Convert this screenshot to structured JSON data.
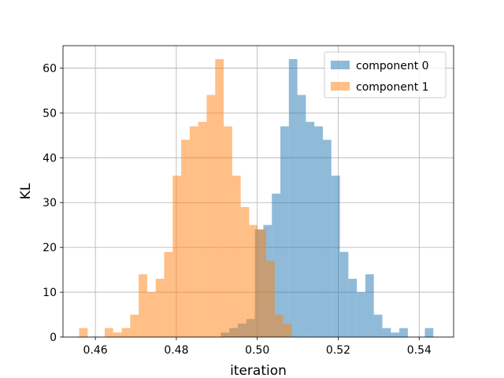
{
  "chart_data": {
    "type": "histogram",
    "title": "",
    "xlabel": "iteration",
    "ylabel": "KL",
    "xlim": [
      0.452,
      0.5485
    ],
    "ylim": [
      0,
      65
    ],
    "xticks": [
      0.46,
      0.48,
      0.5,
      0.52,
      0.54
    ],
    "xtick_labels": [
      "0.46",
      "0.48",
      "0.50",
      "0.52",
      "0.54"
    ],
    "yticks": [
      0,
      10,
      20,
      30,
      40,
      50,
      60
    ],
    "ytick_labels": [
      "0",
      "10",
      "20",
      "30",
      "40",
      "50",
      "60"
    ],
    "grid": true,
    "legend_position": "top-right",
    "bin_width": 0.0021,
    "series": [
      {
        "name": "component 0",
        "color": "#1f77b4",
        "alpha": 0.5,
        "bins": [
          [
            0.491,
            1
          ],
          [
            0.4931,
            2
          ],
          [
            0.4952,
            3
          ],
          [
            0.4973,
            4
          ],
          [
            0.4994,
            24
          ],
          [
            0.5015,
            25
          ],
          [
            0.5036,
            32
          ],
          [
            0.5057,
            47
          ],
          [
            0.5078,
            62
          ],
          [
            0.5099,
            54
          ],
          [
            0.512,
            48
          ],
          [
            0.5141,
            47
          ],
          [
            0.5162,
            44
          ],
          [
            0.5183,
            36
          ],
          [
            0.5204,
            19
          ],
          [
            0.5225,
            13
          ],
          [
            0.5246,
            10
          ],
          [
            0.5267,
            14
          ],
          [
            0.5288,
            5
          ],
          [
            0.5309,
            2
          ],
          [
            0.533,
            1
          ],
          [
            0.5351,
            2
          ],
          [
            0.5372,
            0
          ],
          [
            0.5393,
            0
          ],
          [
            0.5414,
            2
          ]
        ]
      },
      {
        "name": "component 1",
        "color": "#ff7f0e",
        "alpha": 0.5,
        "bins": [
          [
            0.456,
            2
          ],
          [
            0.4581,
            0
          ],
          [
            0.4602,
            0
          ],
          [
            0.4623,
            2
          ],
          [
            0.4644,
            1
          ],
          [
            0.4665,
            2
          ],
          [
            0.4686,
            5
          ],
          [
            0.4707,
            14
          ],
          [
            0.4728,
            10
          ],
          [
            0.4749,
            13
          ],
          [
            0.477,
            19
          ],
          [
            0.4791,
            36
          ],
          [
            0.4812,
            44
          ],
          [
            0.4833,
            47
          ],
          [
            0.4854,
            48
          ],
          [
            0.4875,
            54
          ],
          [
            0.4896,
            62
          ],
          [
            0.4917,
            47
          ],
          [
            0.4938,
            36
          ],
          [
            0.4959,
            29
          ],
          [
            0.498,
            25
          ],
          [
            0.5001,
            24
          ],
          [
            0.5022,
            17
          ],
          [
            0.5043,
            5
          ],
          [
            0.5064,
            3
          ]
        ]
      }
    ]
  }
}
